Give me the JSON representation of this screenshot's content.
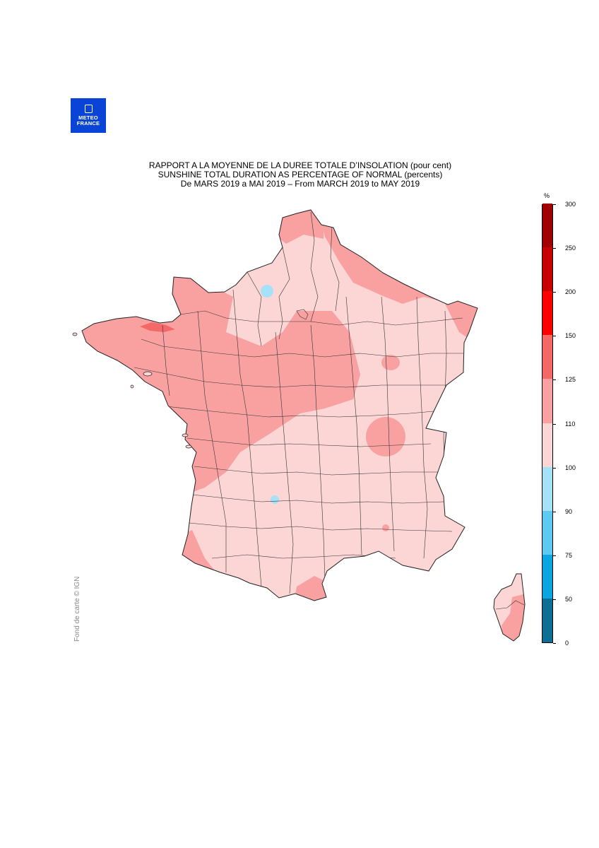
{
  "logo": {
    "line1": "METEO",
    "line2": "FRANCE",
    "icon": "meteo-france-logo-icon",
    "color": "#0a44d6"
  },
  "title": {
    "line1": "RAPPORT A LA MOYENNE DE LA DUREE TOTALE D’INSOLATION (pour cent)",
    "line2": "SUNSHINE TOTAL DURATION AS PERCENTAGE OF NORMAL (percents)",
    "line3": "De MARS 2019 a MAI 2019 – From MARCH 2019 to MAY 2019"
  },
  "credit": "Fond de carte © IGN",
  "legend": {
    "unit": "%",
    "ticks": [
      "0",
      "50",
      "75",
      "90",
      "100",
      "110",
      "125",
      "150",
      "200",
      "250",
      "300"
    ],
    "colors": [
      "#0e6f94",
      "#0aa6e0",
      "#5dcaf2",
      "#a6e2f7",
      "#fcd5d5",
      "#f9a1a1",
      "#f46868",
      "#ff0000",
      "#c80000",
      "#a00000"
    ]
  }
}
